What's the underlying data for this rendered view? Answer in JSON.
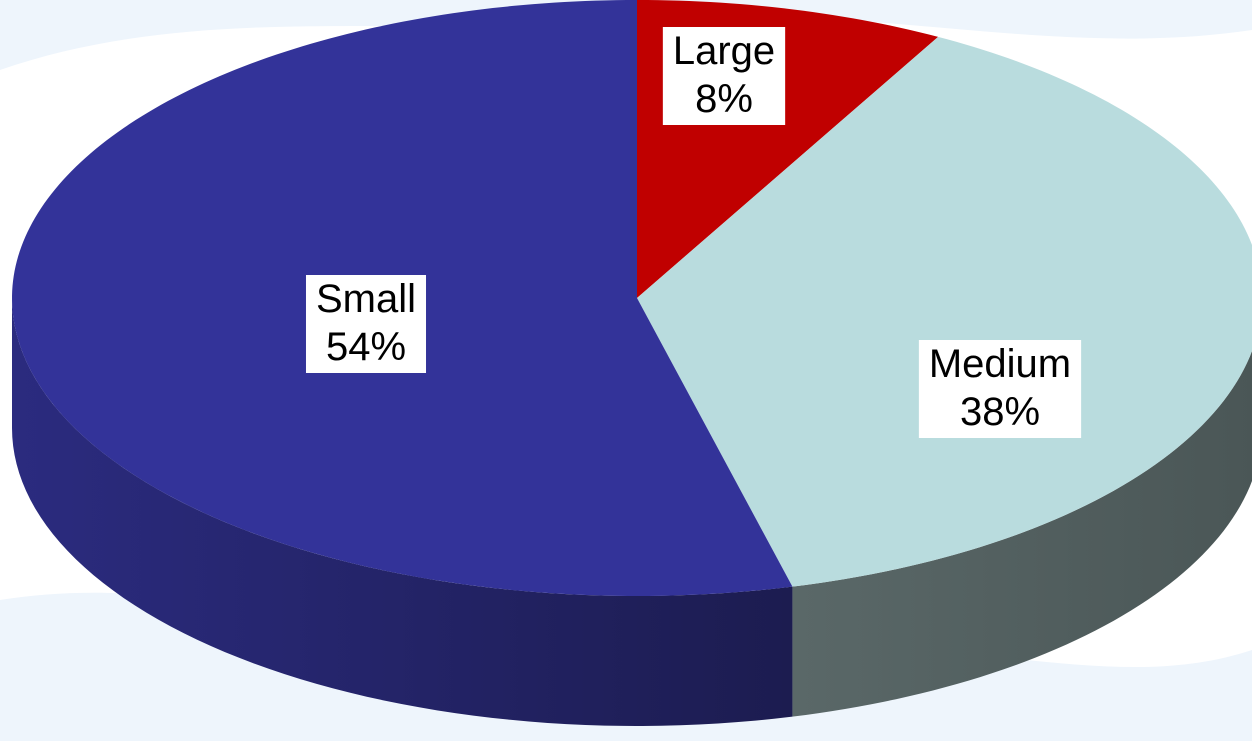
{
  "chart_data": {
    "type": "pie",
    "style": "3d",
    "slices": [
      {
        "name": "Large",
        "label": "Large",
        "value": 8,
        "value_label": "8%",
        "color": "#C00000",
        "side_color": "#7A0000"
      },
      {
        "name": "Medium",
        "label": "Medium",
        "value": 38,
        "value_label": "38%",
        "color": "#B9DCDE",
        "side_color": "#4E5B5B"
      },
      {
        "name": "Small",
        "label": "Small",
        "value": 54,
        "value_label": "54%",
        "color": "#333399",
        "side_color": "#23236B"
      }
    ],
    "start": "top",
    "direction": "clockwise",
    "legend": "none",
    "data_labels": "inside"
  },
  "background": {
    "color": "#FFFFFF",
    "wave_color": "#EEF5FC"
  }
}
